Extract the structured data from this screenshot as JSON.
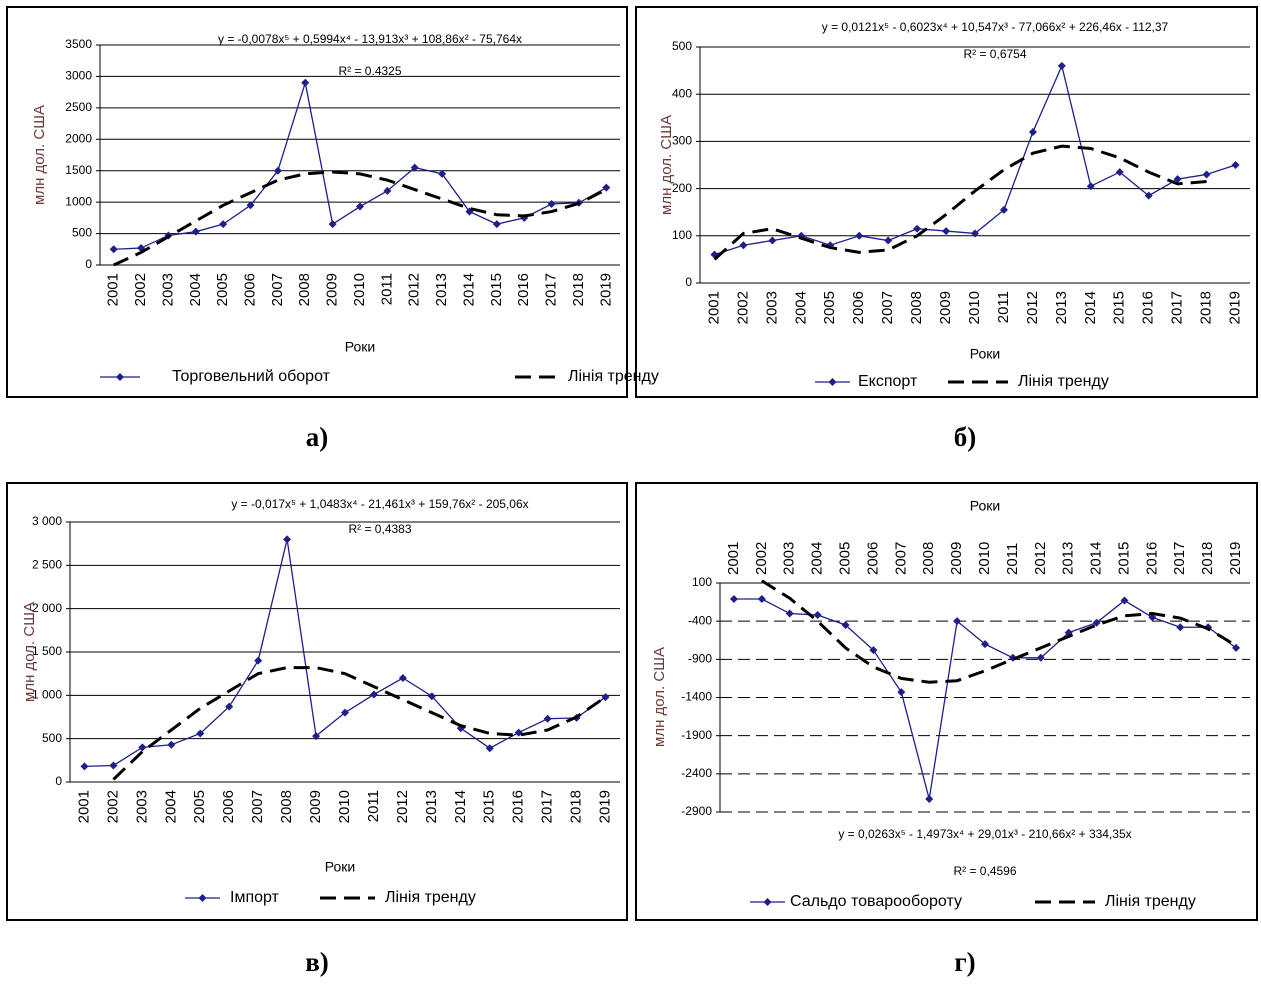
{
  "chart_data": [
    {
      "type": "line",
      "caption": "а)",
      "equation": "y = -0,0078x⁵ + 0,5994x⁴ - 13,913x³ + 108,86x² - 75,764x",
      "r_squared": "R² = 0.4325",
      "y_label": "млн дол. США",
      "x_label": "Роки",
      "categories": [
        "2001",
        "2002",
        "2003",
        "2004",
        "2005",
        "2006",
        "2007",
        "2008",
        "2009",
        "2010",
        "2011",
        "2012",
        "2013",
        "2014",
        "2015",
        "2016",
        "2017",
        "2018",
        "2019"
      ],
      "series": [
        {
          "name": "Торговельний оборот",
          "color": "#1f1f8c",
          "style": "solid",
          "markers": true,
          "values": [
            250,
            270,
            470,
            530,
            650,
            950,
            1500,
            2900,
            650,
            930,
            1180,
            1550,
            1450,
            850,
            650,
            750,
            970,
            990,
            1230
          ]
        },
        {
          "name": "Лінія тренду",
          "color": "#000000",
          "style": "dashed",
          "markers": false,
          "values": [
            0,
            200,
            450,
            700,
            950,
            1150,
            1350,
            1450,
            1480,
            1450,
            1350,
            1200,
            1050,
            900,
            800,
            780,
            850,
            980,
            1200
          ]
        }
      ],
      "ylim": [
        0,
        3500
      ],
      "yticks": [
        0,
        500,
        1000,
        1500,
        2000,
        2500,
        3000,
        3500
      ],
      "grid": true,
      "grid_style": "solid",
      "x_axis_position": "bottom"
    },
    {
      "type": "line",
      "caption": "б)",
      "equation": "y = 0,0121x⁵ - 0,6023x⁴ + 10,547x³ - 77,066x² + 226,46x - 112,37",
      "r_squared": "R² = 0,6754",
      "y_label": "млн дол. США",
      "x_label": "Роки",
      "categories": [
        "2001",
        "2002",
        "2003",
        "2004",
        "2005",
        "2006",
        "2007",
        "2008",
        "2009",
        "2010",
        "2011",
        "2012",
        "2013",
        "2014",
        "2015",
        "2016",
        "2017",
        "2018",
        "2019"
      ],
      "series": [
        {
          "name": "Експорт",
          "color": "#1f1f8c",
          "style": "solid",
          "markers": true,
          "values": [
            60,
            80,
            90,
            100,
            80,
            100,
            90,
            115,
            110,
            105,
            155,
            320,
            460,
            205,
            235,
            185,
            220,
            230,
            250
          ]
        },
        {
          "name": "Лінія тренду",
          "color": "#000000",
          "style": "dashed",
          "markers": false,
          "values": [
            50,
            105,
            115,
            95,
            75,
            65,
            70,
            100,
            145,
            195,
            240,
            275,
            290,
            285,
            265,
            235,
            210,
            215,
            null
          ]
        }
      ],
      "ylim": [
        0,
        500
      ],
      "yticks": [
        0,
        100,
        200,
        300,
        400,
        500
      ],
      "grid": true,
      "grid_style": "solid",
      "x_axis_position": "bottom"
    },
    {
      "type": "line",
      "caption": "в)",
      "equation": "y = -0,017x⁵ + 1,0483x⁴ - 21,461x³ + 159,76x² - 205,06x",
      "r_squared": "R² = 0,4383",
      "y_label": "млн дол. США",
      "x_label": "Роки",
      "categories": [
        "2001",
        "2002",
        "2003",
        "2004",
        "2005",
        "2006",
        "2007",
        "2008",
        "2009",
        "2010",
        "2011",
        "2012",
        "2013",
        "2014",
        "2015",
        "2016",
        "2017",
        "2018",
        "2019"
      ],
      "series": [
        {
          "name": "Імпорт",
          "color": "#1f1f8c",
          "style": "solid",
          "markers": true,
          "values": [
            180,
            190,
            400,
            430,
            560,
            870,
            1400,
            2800,
            530,
            800,
            1010,
            1200,
            990,
            620,
            390,
            570,
            730,
            740,
            980
          ]
        },
        {
          "name": "Лінія тренду",
          "color": "#000000",
          "style": "dashed",
          "markers": false,
          "values": [
            null,
            30,
            350,
            600,
            850,
            1050,
            1250,
            1320,
            1320,
            1250,
            1100,
            950,
            800,
            650,
            560,
            540,
            600,
            750,
            980
          ]
        }
      ],
      "ylim": [
        0,
        3000
      ],
      "yticks": [
        0,
        500,
        {
          "value": 1000,
          "label": "1 000"
        },
        {
          "value": 1500,
          "label": "1 500"
        },
        {
          "value": 2000,
          "label": "2 000"
        },
        {
          "value": 2500,
          "label": "2 500"
        },
        {
          "value": 3000,
          "label": "3 000"
        }
      ],
      "grid": true,
      "grid_style": "solid",
      "x_axis_position": "bottom"
    },
    {
      "type": "line",
      "caption": "г)",
      "equation": "y = 0,0263x⁵ - 1,4973x⁴ + 29,01x³ - 210,66x² + 334,35x",
      "r_squared": "R² = 0,4596",
      "y_label": "млн дол. США",
      "x_label": "Роки",
      "categories": [
        "2001",
        "2002",
        "2003",
        "2004",
        "2005",
        "2006",
        "2007",
        "2008",
        "2009",
        "2010",
        "2011",
        "2012",
        "2013",
        "2014",
        "2015",
        "2016",
        "2017",
        "2018",
        "2019"
      ],
      "series": [
        {
          "name": "Сальдо товарообороту",
          "color": "#1f1f8c",
          "style": "solid",
          "markers": true,
          "values": [
            -110,
            -110,
            -300,
            -320,
            -450,
            -780,
            -1330,
            -2730,
            -400,
            -700,
            -880,
            -880,
            -550,
            -420,
            -130,
            -350,
            -480,
            -480,
            -750
          ]
        },
        {
          "name": "Лінія тренду",
          "color": "#000000",
          "style": "dashed",
          "markers": false,
          "values": [
            null,
            130,
            -100,
            -400,
            -750,
            -1000,
            -1150,
            -1200,
            -1180,
            -1050,
            -900,
            -750,
            -600,
            -450,
            -330,
            -300,
            -360,
            -500,
            -720
          ]
        }
      ],
      "ylim": [
        -2900,
        100
      ],
      "yticks": [
        -2900,
        -2400,
        -1900,
        -1400,
        -900,
        -400,
        100
      ],
      "grid": true,
      "grid_style": "dashed",
      "x_axis_position": "top"
    }
  ]
}
